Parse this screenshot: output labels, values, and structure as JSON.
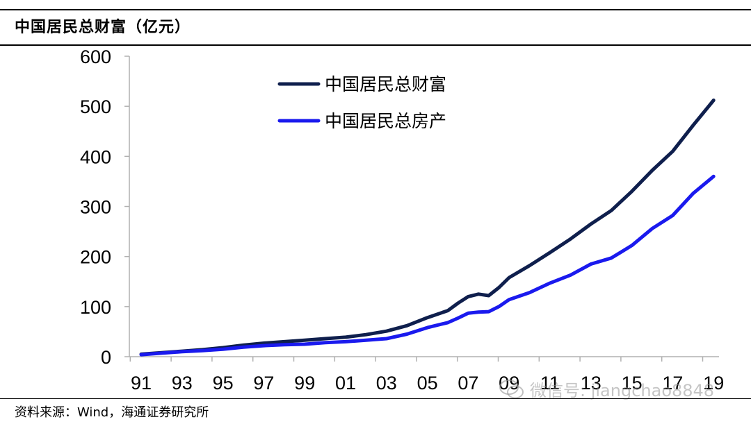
{
  "title": "中国居民总财富（亿元）",
  "source": "资料来源：Wind，海通证券研究所",
  "watermark": "微信号: jiangchao8848",
  "chart_data": {
    "type": "line",
    "ylim": [
      0,
      600
    ],
    "yticks": [
      0,
      100,
      200,
      300,
      400,
      500,
      600
    ],
    "xlim": [
      1991,
      2020
    ],
    "x_ticks": [
      1991,
      1993,
      1995,
      1997,
      1999,
      2001,
      2003,
      2005,
      2007,
      2009,
      2011,
      2013,
      2015,
      2017,
      2019
    ],
    "x_tick_labels": [
      "91",
      "93",
      "95",
      "97",
      "99",
      "01",
      "03",
      "05",
      "07",
      "09",
      "11",
      "13",
      "15",
      "17",
      "19"
    ],
    "legend_position": "top-left",
    "grid": false,
    "series": [
      {
        "name": "中国居民总财富",
        "color": "#0f1f4d",
        "points": [
          [
            1991.0,
            5
          ],
          [
            1992.0,
            8
          ],
          [
            1993.0,
            11
          ],
          [
            1994.0,
            14
          ],
          [
            1995.0,
            18
          ],
          [
            1996.0,
            23
          ],
          [
            1997.0,
            27
          ],
          [
            1998.0,
            30
          ],
          [
            1999.0,
            33
          ],
          [
            2000.0,
            36
          ],
          [
            2001.0,
            39
          ],
          [
            2002.0,
            44
          ],
          [
            2003.0,
            51
          ],
          [
            2004.0,
            62
          ],
          [
            2005.0,
            78
          ],
          [
            2006.0,
            92
          ],
          [
            2006.5,
            107
          ],
          [
            2007.0,
            120
          ],
          [
            2007.5,
            125
          ],
          [
            2008.0,
            122
          ],
          [
            2008.5,
            138
          ],
          [
            2009.0,
            158
          ],
          [
            2010.0,
            182
          ],
          [
            2011.0,
            208
          ],
          [
            2012.0,
            235
          ],
          [
            2013.0,
            265
          ],
          [
            2014.0,
            292
          ],
          [
            2015.0,
            330
          ],
          [
            2016.0,
            372
          ],
          [
            2017.0,
            410
          ],
          [
            2018.0,
            462
          ],
          [
            2019.0,
            512
          ]
        ]
      },
      {
        "name": "中国居民总房产",
        "color": "#1a1aee",
        "points": [
          [
            1991.0,
            4
          ],
          [
            1992.0,
            7
          ],
          [
            1993.0,
            10
          ],
          [
            1994.0,
            12
          ],
          [
            1995.0,
            15
          ],
          [
            1996.0,
            19
          ],
          [
            1997.0,
            22
          ],
          [
            1998.0,
            24
          ],
          [
            1999.0,
            25
          ],
          [
            2000.0,
            28
          ],
          [
            2001.0,
            30
          ],
          [
            2002.0,
            33
          ],
          [
            2003.0,
            36
          ],
          [
            2004.0,
            45
          ],
          [
            2005.0,
            58
          ],
          [
            2006.0,
            68
          ],
          [
            2006.5,
            77
          ],
          [
            2007.0,
            87
          ],
          [
            2007.5,
            89
          ],
          [
            2008.0,
            90
          ],
          [
            2008.5,
            100
          ],
          [
            2009.0,
            114
          ],
          [
            2010.0,
            128
          ],
          [
            2011.0,
            147
          ],
          [
            2012.0,
            163
          ],
          [
            2013.0,
            185
          ],
          [
            2014.0,
            197
          ],
          [
            2015.0,
            222
          ],
          [
            2016.0,
            256
          ],
          [
            2017.0,
            282
          ],
          [
            2018.0,
            326
          ],
          [
            2019.0,
            360
          ]
        ]
      }
    ]
  }
}
